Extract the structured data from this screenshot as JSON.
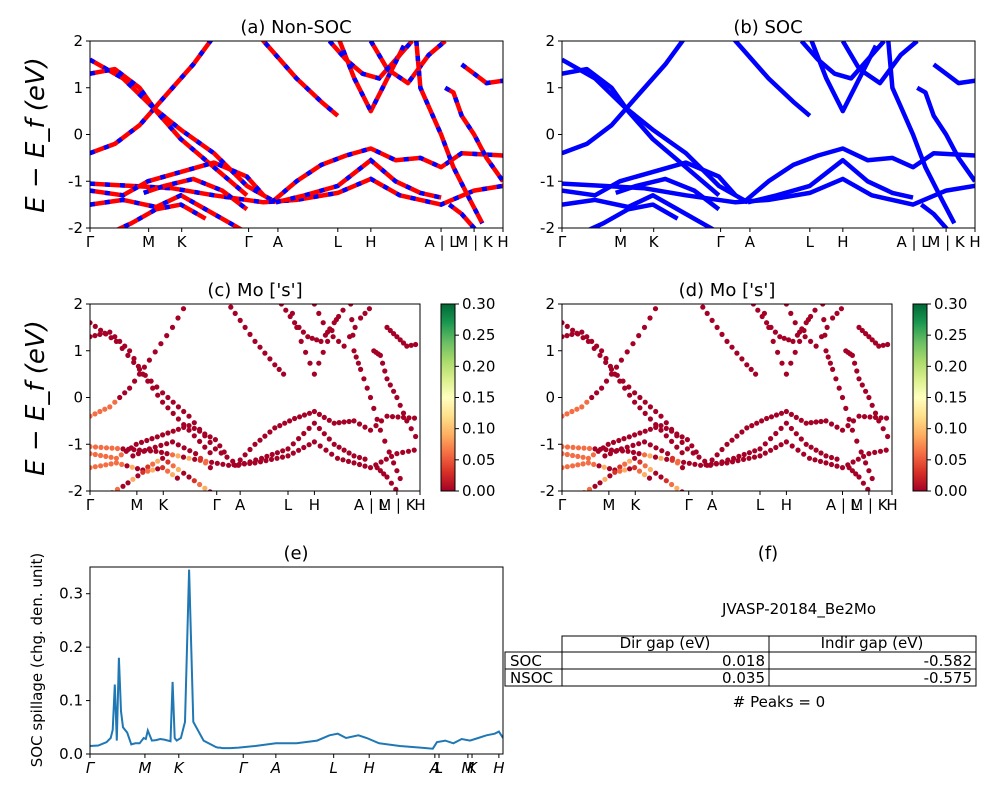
{
  "panels": {
    "a": {
      "title": "(a) Non-SOC"
    },
    "b": {
      "title": "(b) SOC"
    },
    "c": {
      "title": "(c)  Mo ['s']"
    },
    "d": {
      "title": "(d) Mo ['s']"
    },
    "e": {
      "title": "(e)"
    },
    "f": {
      "title": "(f)"
    }
  },
  "band_ylabel": "E − E_f (eV)",
  "kpath_labels": [
    "Γ",
    "M",
    "K",
    "Γ",
    "A",
    "L",
    "H",
    "A | L",
    "M | K",
    "H"
  ],
  "colorbar": {
    "ticks": [
      "0.00",
      "0.05",
      "0.10",
      "0.15",
      "0.20",
      "0.25",
      "0.30"
    ],
    "colormap": "RdYlGn"
  },
  "table": {
    "title": "JVASP-20184_Be2Mo",
    "col_headers": [
      "Dir gap (eV)",
      "Indir gap (eV)"
    ],
    "rows": [
      {
        "label": "SOC",
        "dir": "0.018",
        "indir": "-0.582"
      },
      {
        "label": "NSOC",
        "dir": "0.035",
        "indir": "-0.575"
      }
    ],
    "peaks": "# Peaks = 0"
  },
  "colors": {
    "nonsoc_red": "#ff0000",
    "nonsoc_blue": "#0000ff",
    "soc_blue": "#0000ff",
    "spillage_line": "#1f77b4"
  },
  "chart_data": [
    {
      "type": "line",
      "title": "(a) Non-SOC",
      "ylabel": "E − E_f (eV)",
      "ylim": [
        -2,
        2
      ],
      "yticks": [
        -2,
        -1,
        0,
        1,
        2
      ],
      "xticks": [
        "Γ",
        "M",
        "K",
        "Γ",
        "A",
        "L",
        "H",
        "A | L",
        "M | K",
        "H"
      ],
      "series": [
        {
          "values": [
            1.6,
            0.9,
            0.2,
            -0.3,
            -0.9,
            -1.3
          ]
        },
        {
          "values": [
            -0.4,
            -0.2,
            0.1,
            -0.5,
            -1.0,
            -1.4
          ]
        },
        {
          "values": [
            -1.05,
            -1.1,
            -1.2,
            -1.4,
            -1.45,
            -1.1,
            -1.3,
            -1.5
          ]
        },
        {
          "values": [
            -1.5,
            -1.4,
            -1.7,
            -2.0
          ]
        }
      ]
    },
    {
      "type": "line",
      "title": "(b) SOC",
      "ylim": [
        -2,
        2
      ],
      "yticks": [
        -2,
        -1,
        0,
        1,
        2
      ],
      "xticks": [
        "Γ",
        "M",
        "K",
        "Γ",
        "A",
        "L",
        "H",
        "A | L",
        "M | K",
        "H"
      ]
    },
    {
      "type": "scatter",
      "title": "(c)  Mo ['s']",
      "ylabel": "E − E_f (eV)",
      "ylim": [
        -2,
        2
      ],
      "yticks": [
        -2,
        -1,
        0,
        1,
        2
      ],
      "xticks": [
        "Γ",
        "M",
        "K",
        "Γ",
        "A",
        "L",
        "H",
        "A | L",
        "M | K",
        "H"
      ],
      "colorbar_range": [
        0.0,
        0.3
      ]
    },
    {
      "type": "scatter",
      "title": "(d) Mo ['s']",
      "ylim": [
        -2,
        2
      ],
      "yticks": [
        -2,
        -1,
        0,
        1,
        2
      ],
      "xticks": [
        "Γ",
        "M",
        "K",
        "Γ",
        "A",
        "L",
        "H",
        "A | L",
        "M | K",
        "H"
      ],
      "colorbar_range": [
        0.0,
        0.3
      ]
    },
    {
      "type": "line",
      "title": "(e)",
      "ylabel": "SOC spillage (chg. den. unit)",
      "ylim": [
        0,
        0.35
      ],
      "yticks": [
        0.0,
        0.1,
        0.2,
        0.3
      ],
      "xticks": [
        "Γ",
        "M",
        "K",
        "Γ",
        "A",
        "L",
        "H",
        "A",
        "L",
        "M",
        "K",
        "H"
      ],
      "x": [
        0.0,
        0.02,
        0.04,
        0.05,
        0.055,
        0.06,
        0.065,
        0.07,
        0.075,
        0.08,
        0.09,
        0.1,
        0.11,
        0.12,
        0.13,
        0.135,
        0.14,
        0.15,
        0.16,
        0.17,
        0.18,
        0.195,
        0.2,
        0.205,
        0.21,
        0.22,
        0.23,
        0.24,
        0.25,
        0.275,
        0.3,
        0.305,
        0.31,
        0.315,
        0.32,
        0.33,
        0.34,
        0.36,
        0.4,
        0.45,
        0.5,
        0.55,
        0.58,
        0.6,
        0.62,
        0.65,
        0.67,
        0.7,
        0.75,
        0.8,
        0.83,
        0.84,
        0.86,
        0.88,
        0.9,
        0.92,
        0.94,
        0.96,
        0.98,
        0.99,
        1.0
      ],
      "values": [
        0.015,
        0.016,
        0.022,
        0.03,
        0.045,
        0.13,
        0.025,
        0.18,
        0.08,
        0.05,
        0.04,
        0.018,
        0.02,
        0.02,
        0.03,
        0.028,
        0.044,
        0.025,
        0.026,
        0.028,
        0.027,
        0.024,
        0.135,
        0.03,
        0.025,
        0.03,
        0.06,
        0.345,
        0.06,
        0.025,
        0.015,
        0.013,
        0.012,
        0.012,
        0.011,
        0.011,
        0.011,
        0.012,
        0.015,
        0.02,
        0.02,
        0.025,
        0.035,
        0.038,
        0.03,
        0.035,
        0.03,
        0.02,
        0.015,
        0.012,
        0.01,
        0.022,
        0.025,
        0.02,
        0.028,
        0.025,
        0.03,
        0.035,
        0.038,
        0.042,
        0.03
      ]
    },
    {
      "type": "table",
      "title": "JVASP-20184_Be2Mo",
      "columns": [
        "",
        "Dir gap (eV)",
        "Indir gap (eV)"
      ],
      "rows": [
        [
          "SOC",
          "0.018",
          "-0.582"
        ],
        [
          "NSOC",
          "0.035",
          "-0.575"
        ]
      ]
    }
  ]
}
